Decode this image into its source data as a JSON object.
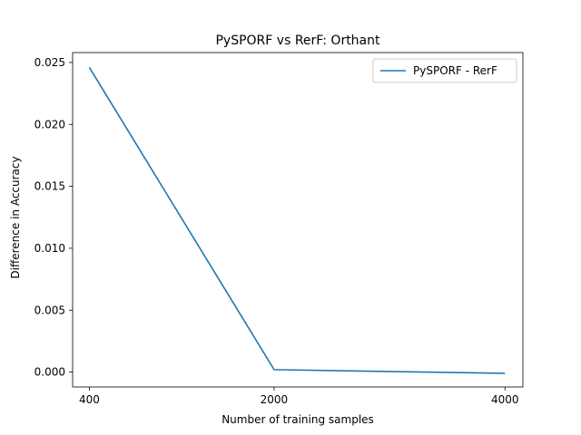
{
  "chart_data": {
    "type": "line",
    "title": "PySPORF vs RerF: Orthant",
    "xlabel": "Number of training samples",
    "ylabel": "Difference in Accuracy",
    "x": [
      400,
      2000,
      4000
    ],
    "xticks": [
      "400",
      "2000",
      "4000"
    ],
    "yticks": [
      "0.000",
      "0.005",
      "0.010",
      "0.015",
      "0.020",
      "0.025"
    ],
    "ytick_values": [
      0.0,
      0.005,
      0.01,
      0.015,
      0.02,
      0.025
    ],
    "xlim": [
      255,
      4155
    ],
    "ylim": [
      -0.0012,
      0.0258
    ],
    "series": [
      {
        "name": "PySPORF - RerF",
        "values": [
          0.0246,
          0.0002,
          -0.0001
        ],
        "color": "#1f77b4"
      }
    ],
    "legend": "top-right",
    "grid": false
  }
}
